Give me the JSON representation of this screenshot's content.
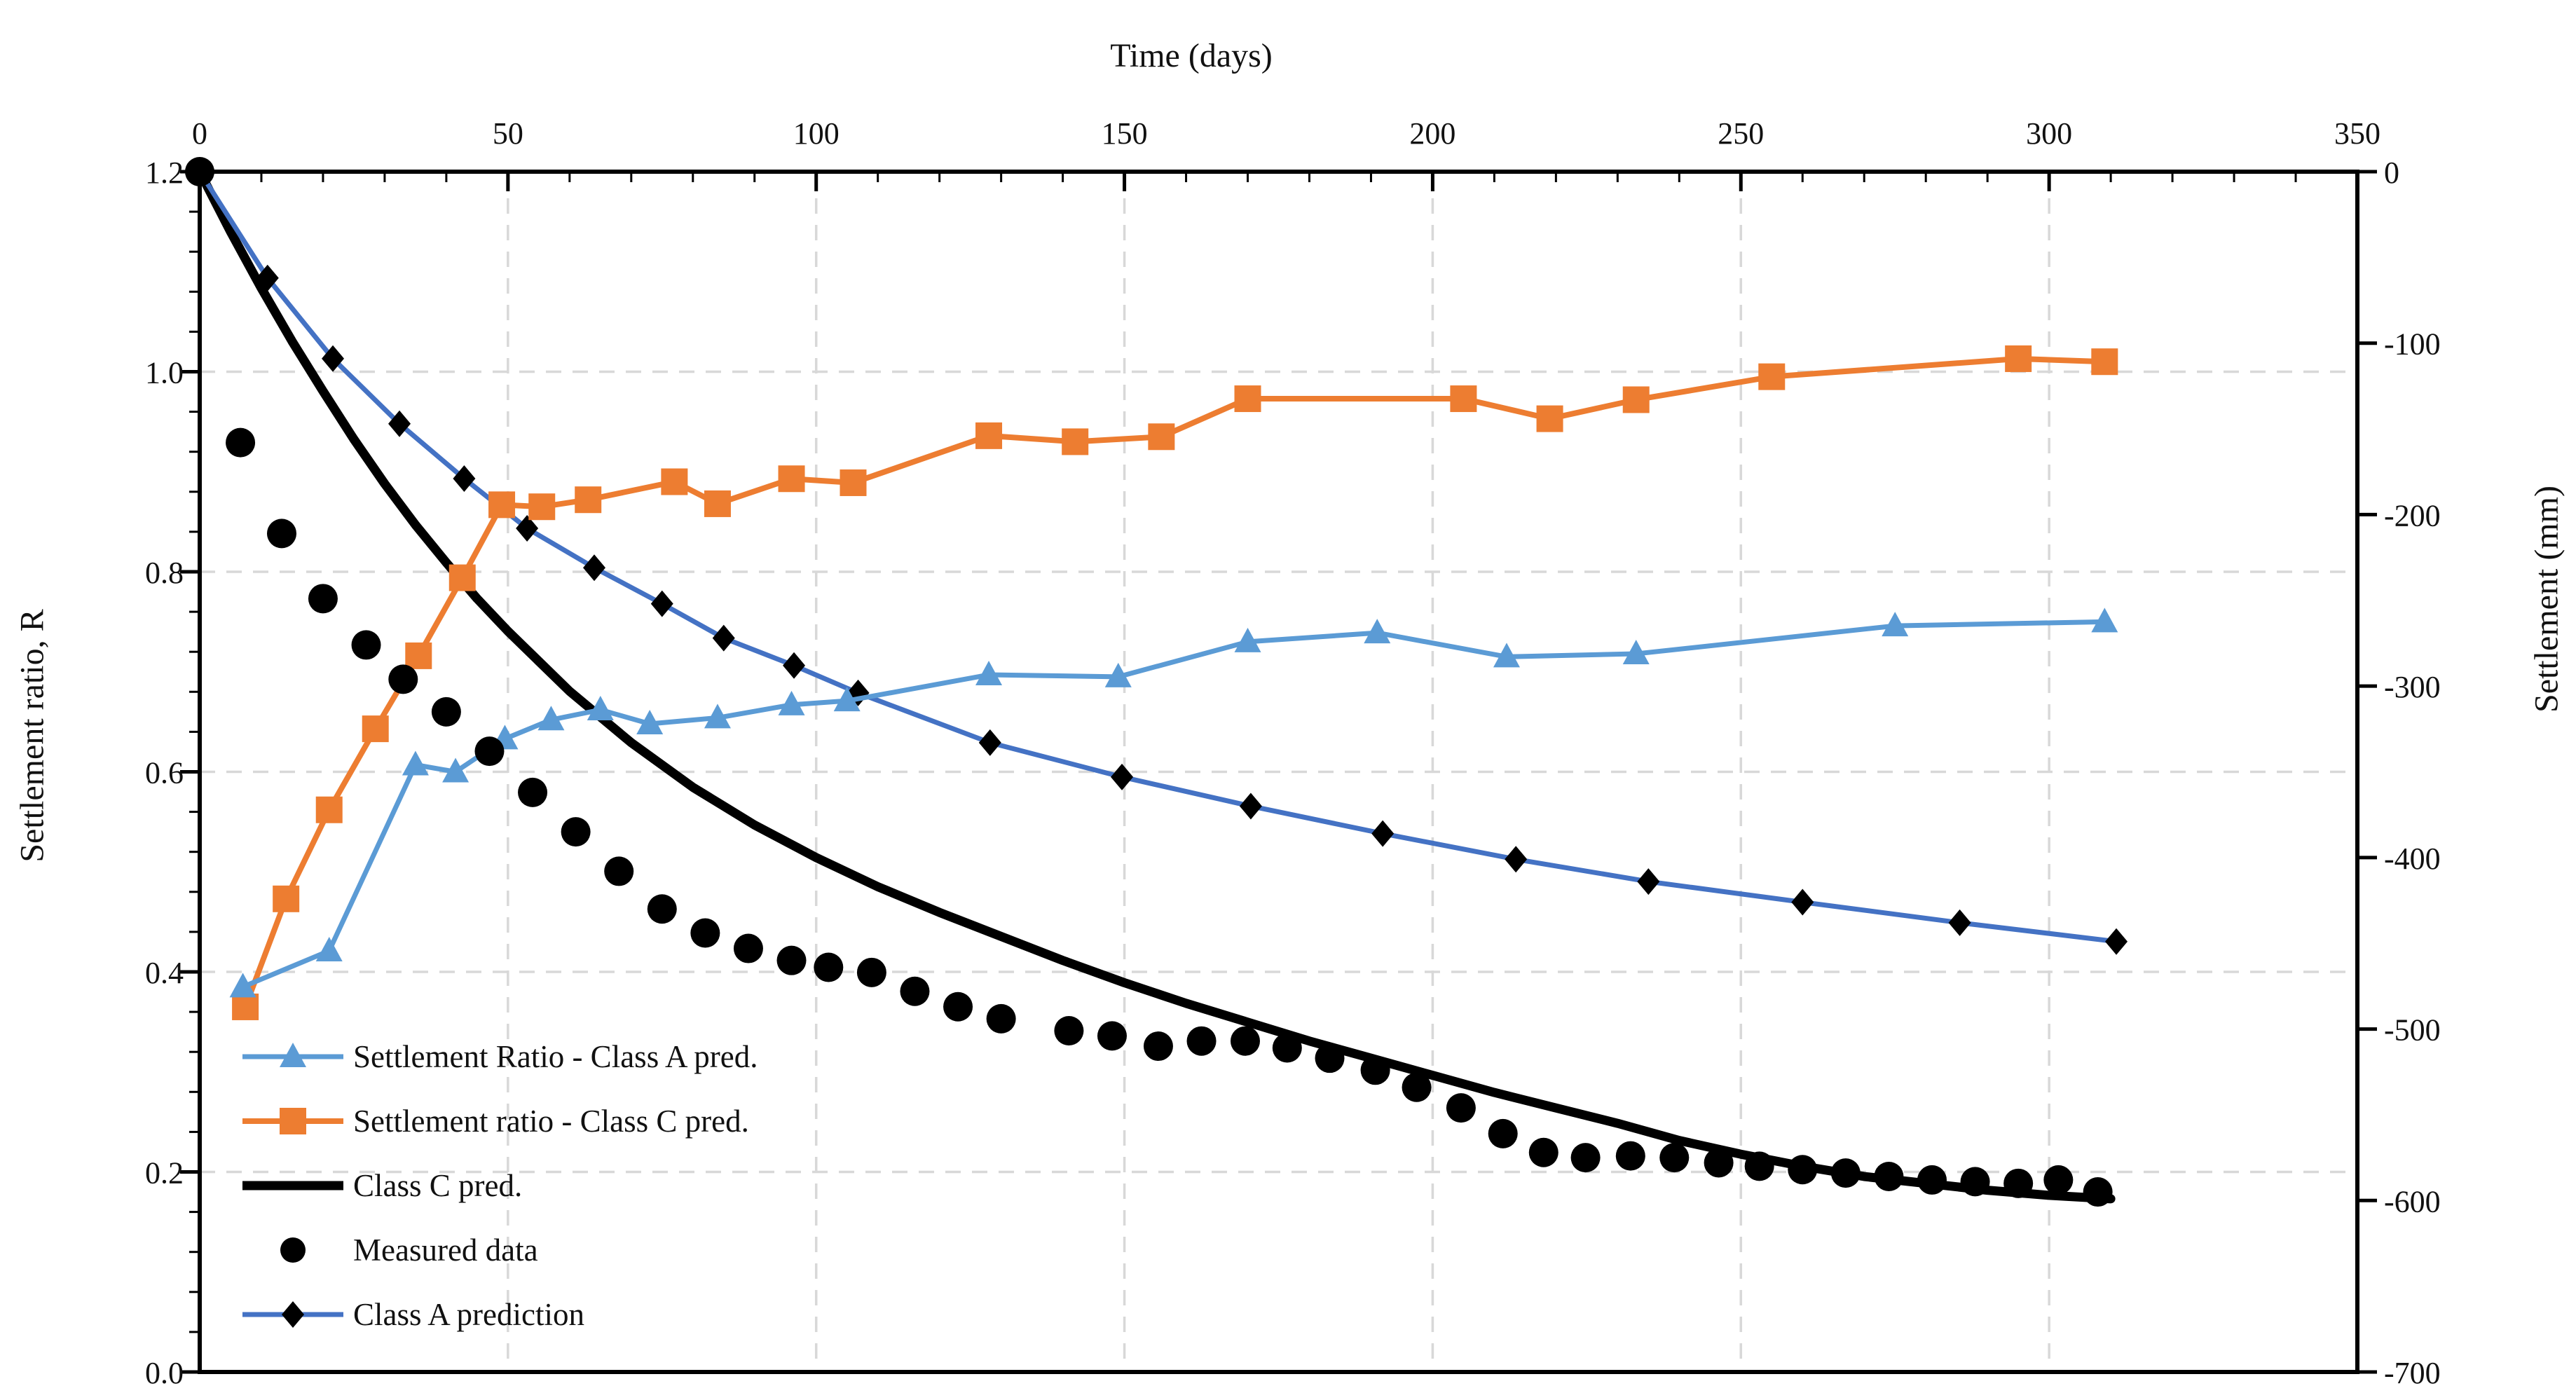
{
  "titles": {
    "x_axis": "Time (days)",
    "y_left": "Settlement ratio, R",
    "y_right": "Settlement (mm)"
  },
  "colors": {
    "light_blue": "#5B9BD5",
    "orange": "#ED7D31",
    "dark_blue": "#4472C4",
    "black": "#000000",
    "gridline": "#D8D8D8",
    "text": "#111111"
  },
  "legend": {
    "items": [
      {
        "label": "Settlement Ratio - Class A pred.",
        "marker": "triangle",
        "line": true,
        "color": "#5B9BD5",
        "marker_color": "#5B9BD5",
        "line_width": 7
      },
      {
        "label": "Settlement ratio - Class C pred.",
        "marker": "square",
        "line": true,
        "color": "#ED7D31",
        "marker_color": "#ED7D31",
        "line_width": 8
      },
      {
        "label": "Class C pred.",
        "marker": "none",
        "line": true,
        "color": "#000000",
        "marker_color": "#000000",
        "line_width": 13
      },
      {
        "label": "Measured data",
        "marker": "circle",
        "line": false,
        "color": "#000000",
        "marker_color": "#000000",
        "line_width": 0
      },
      {
        "label": "Class A prediction",
        "marker": "diamond",
        "line": true,
        "color": "#4472C4",
        "marker_color": "#000000",
        "line_width": 7
      }
    ]
  },
  "chart_data": {
    "type": "line",
    "title": "",
    "xlabel": "Time (days)",
    "ylabel_left": "Settlement ratio, R",
    "ylabel_right": "Settlement (mm)",
    "grid": true,
    "legend_position": "inside bottom-left",
    "x_axis": {
      "min": 0,
      "max": 350,
      "major_step": 50,
      "minor_step": 10,
      "tick_labels": [
        "0",
        "50",
        "100",
        "150",
        "200",
        "250",
        "300",
        "350"
      ]
    },
    "y_left_axis": {
      "min": 0.0,
      "max": 1.2,
      "major_step": 0.2,
      "minor_step": 0.04,
      "tick_labels": [
        "1.2",
        "1.0",
        "0.8",
        "0.6",
        "0.4",
        "0.2",
        "0.0"
      ]
    },
    "y_right_axis": {
      "min": -700,
      "max": 0,
      "major_step": 100,
      "tick_labels": [
        "0",
        "-100",
        "-200",
        "-300",
        "-400",
        "-500",
        "-600",
        "-700"
      ]
    },
    "series": [
      {
        "name": "Class C pred.",
        "axis": "right",
        "units": "mm",
        "color": "#000000",
        "marker": "none",
        "line": true,
        "width": 13,
        "x": [
          0,
          5,
          10,
          15,
          20,
          25,
          30,
          35,
          40,
          45,
          50,
          60,
          70,
          80,
          90,
          100,
          110,
          120,
          130,
          140,
          150,
          160,
          170,
          180,
          190,
          200,
          210,
          220,
          230,
          240,
          250,
          260,
          270,
          280,
          290,
          300,
          310
        ],
        "values": [
          0,
          -35,
          -68,
          -99,
          -128,
          -156,
          -182,
          -206,
          -228,
          -249,
          -268,
          -303,
          -333,
          -359,
          -381,
          -400,
          -417,
          -432,
          -446,
          -460,
          -473,
          -485,
          -496,
          -507,
          -517,
          -527,
          -537,
          -546,
          -555,
          -565,
          -573,
          -580,
          -586,
          -590,
          -594,
          -597,
          -599
        ]
      },
      {
        "name": "Class A prediction",
        "axis": "right",
        "units": "mm",
        "color": "#4472C4",
        "marker": "diamond",
        "marker_color": "#000000",
        "line": true,
        "width": 7,
        "x": [
          0,
          11,
          21.6,
          32.4,
          42.9,
          53.1,
          64,
          75,
          85,
          96.4,
          106.8,
          128.2,
          149.6,
          170.5,
          191.9,
          213.5,
          235,
          260,
          285.5,
          310.9
        ],
        "values": [
          0,
          -62,
          -109,
          -147,
          -179,
          -208,
          -231,
          -252,
          -272,
          -288,
          -304,
          -333,
          -353,
          -370,
          -386,
          -401,
          -414,
          -426,
          -438,
          -449
        ]
      },
      {
        "name": "Settlement ratio - Class C pred.",
        "axis": "left",
        "units": "ratio",
        "color": "#ED7D31",
        "marker": "square",
        "marker_color": "#ED7D31",
        "line": true,
        "width": 8,
        "x": [
          7.4,
          14,
          21,
          28.5,
          35.5,
          42.6,
          49,
          55.5,
          63,
          77,
          84,
          96,
          106,
          128,
          142,
          156,
          170,
          205,
          219,
          233,
          255,
          295,
          309
        ],
        "values": [
          0.365,
          0.473,
          0.562,
          0.643,
          0.716,
          0.794,
          0.867,
          0.865,
          0.872,
          0.89,
          0.868,
          0.893,
          0.889,
          0.936,
          0.93,
          0.935,
          0.973,
          0.973,
          0.953,
          0.972,
          0.995,
          1.013,
          1.01
        ]
      },
      {
        "name": "Settlement Ratio - Class A pred.",
        "axis": "left",
        "units": "ratio",
        "color": "#5B9BD5",
        "marker": "triangle",
        "marker_color": "#5B9BD5",
        "line": true,
        "width": 7,
        "x": [
          7,
          21,
          35,
          41.5,
          49.5,
          57,
          65,
          73,
          84,
          96,
          105,
          128,
          149,
          170,
          191,
          212,
          233,
          275,
          309
        ],
        "values": [
          0.385,
          0.421,
          0.607,
          0.6,
          0.633,
          0.652,
          0.662,
          0.648,
          0.654,
          0.667,
          0.671,
          0.697,
          0.695,
          0.73,
          0.739,
          0.715,
          0.718,
          0.746,
          0.75
        ]
      },
      {
        "name": "Measured data",
        "axis": "right",
        "units": "mm",
        "color": "#000000",
        "marker": "circle",
        "marker_color": "#000000",
        "line": false,
        "width": 0,
        "x": [
          0,
          6.6,
          13.3,
          20,
          27,
          33,
          40,
          47,
          54,
          61,
          68,
          75,
          82,
          89,
          96,
          102,
          109,
          116,
          123,
          130,
          141,
          148,
          155.5,
          162.5,
          169.6,
          176.4,
          183.3,
          190.7,
          197.4,
          204.6,
          211.4,
          218,
          224.8,
          232.1,
          239.2,
          246.4,
          253,
          260,
          267,
          274,
          281,
          288,
          295,
          301.5,
          307.9
        ],
        "values": [
          0,
          -158,
          -211,
          -249,
          -276,
          -296,
          -315,
          -338,
          -362,
          -385,
          -408,
          -430,
          -444,
          -453,
          -460,
          -464,
          -467,
          -478,
          -487,
          -494,
          -501,
          -504,
          -510,
          -507,
          -507,
          -511,
          -517,
          -524,
          -534,
          -546,
          -561,
          -572,
          -575,
          -574,
          -575,
          -578,
          -580,
          -582,
          -584,
          -586,
          -588,
          -589,
          -590,
          -588,
          -595
        ]
      }
    ]
  }
}
